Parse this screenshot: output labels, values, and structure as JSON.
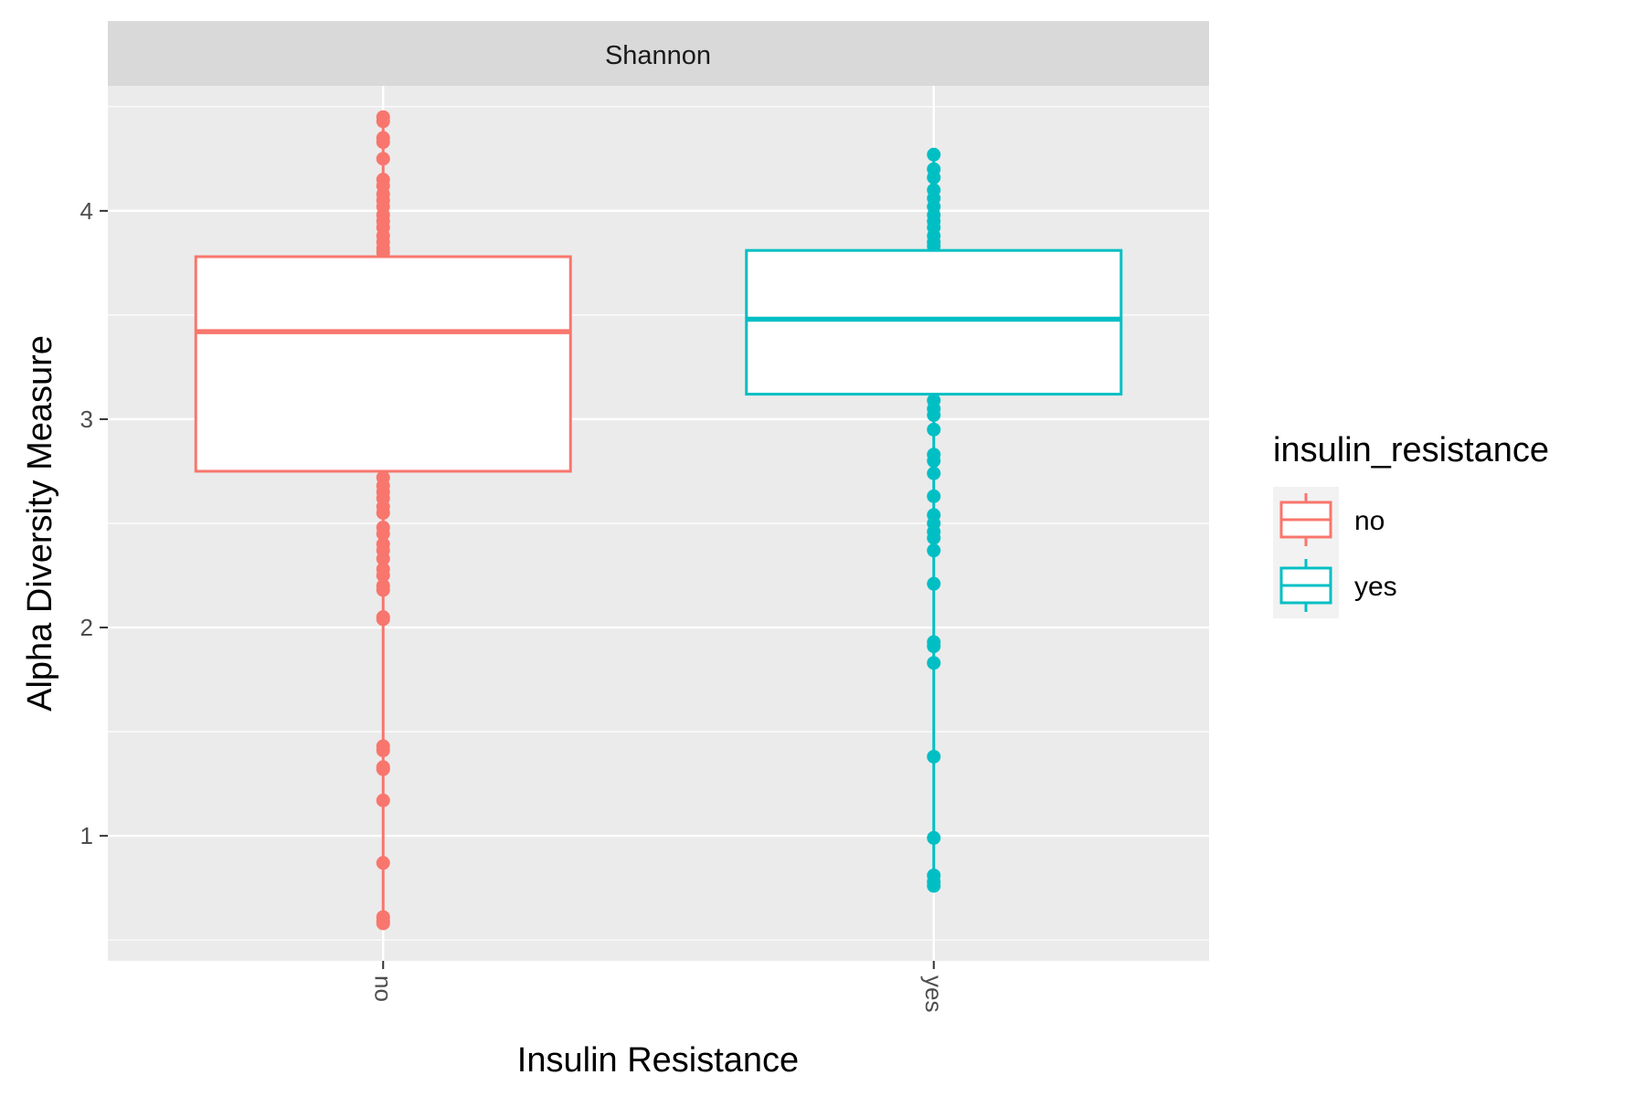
{
  "chart_data": {
    "type": "box",
    "facet": "Shannon",
    "xlabel": "Insulin Resistance",
    "ylabel": "Alpha Diversity Measure",
    "categories": [
      "no",
      "yes"
    ],
    "ylim": [
      0.4,
      4.6
    ],
    "yticks": [
      1,
      2,
      3,
      4
    ],
    "ytick_labels": [
      "1",
      "2",
      "3",
      "4"
    ],
    "grid": true,
    "legend": {
      "title": "insulin_resistance",
      "position": "right",
      "entries": [
        {
          "label": "no",
          "color": "#f8766d"
        },
        {
          "label": "yes",
          "color": "#00bfc4"
        }
      ]
    },
    "boxes": [
      {
        "category": "no",
        "color": "#f8766d",
        "q1": 2.75,
        "median": 3.42,
        "q3": 3.78,
        "whisker_low": 0.58,
        "whisker_high": 4.45,
        "points": [
          4.45,
          4.43,
          4.35,
          4.33,
          4.25,
          4.15,
          4.12,
          4.08,
          4.05,
          4.02,
          3.98,
          3.95,
          3.92,
          3.88,
          3.85,
          3.82,
          3.8,
          2.72,
          2.68,
          2.65,
          2.62,
          2.58,
          2.55,
          2.48,
          2.45,
          2.4,
          2.37,
          2.33,
          2.28,
          2.25,
          2.2,
          2.18,
          2.05,
          2.04,
          1.43,
          1.41,
          1.33,
          1.32,
          1.17,
          0.87,
          0.61,
          0.59,
          0.58
        ]
      },
      {
        "category": "yes",
        "color": "#00bfc4",
        "q1": 3.12,
        "median": 3.48,
        "q3": 3.81,
        "whisker_low": 0.75,
        "whisker_high": 4.27,
        "points": [
          4.27,
          4.2,
          4.16,
          4.1,
          4.06,
          4.02,
          3.98,
          3.95,
          3.92,
          3.88,
          3.85,
          3.83,
          3.09,
          3.05,
          3.02,
          2.95,
          2.83,
          2.8,
          2.74,
          2.63,
          2.54,
          2.5,
          2.46,
          2.43,
          2.37,
          2.21,
          1.93,
          1.91,
          1.83,
          1.38,
          0.99,
          0.81,
          0.78,
          0.76
        ]
      }
    ]
  }
}
